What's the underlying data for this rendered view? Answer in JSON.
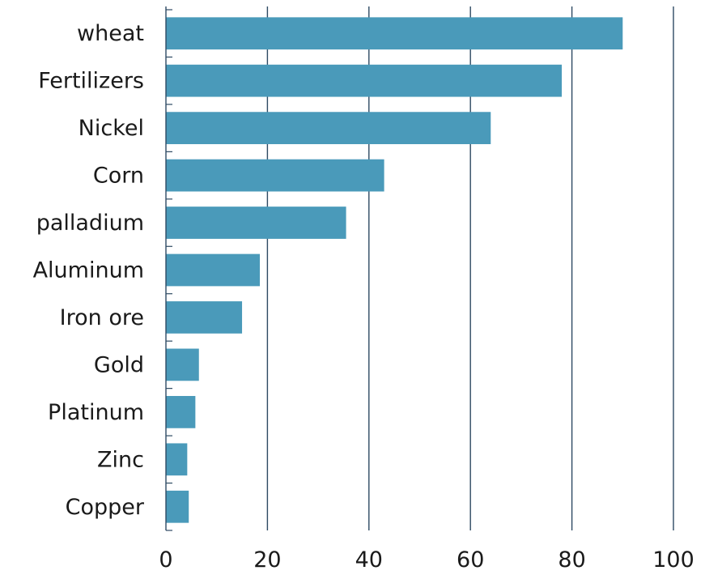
{
  "chart_data": {
    "type": "bar",
    "orientation": "horizontal",
    "title": "",
    "xlabel": "",
    "ylabel": "",
    "categories": [
      "wheat",
      "Fertilizers",
      "Nickel",
      "Corn",
      "palladium",
      "Aluminum",
      "Iron ore",
      "Gold",
      "Platinum",
      "Zinc",
      "Copper"
    ],
    "values": [
      90,
      78,
      64,
      43,
      35.5,
      18.5,
      15,
      6.5,
      5.8,
      4.2,
      4.5
    ],
    "xlim": [
      0,
      100
    ],
    "xticks": [
      0,
      20,
      40,
      60,
      80,
      100
    ],
    "grid": "vertical",
    "legend": "none",
    "bar_color": "#4a9aba",
    "grid_color": "#2e4a63",
    "axis_color": "#2e4a63"
  }
}
